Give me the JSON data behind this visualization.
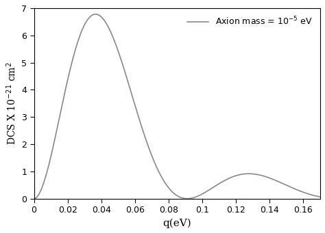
{
  "title": "",
  "xlabel": "q(eV)",
  "ylabel": "DCS X 10$^{-21}$ cm$^2$",
  "xlim": [
    0,
    0.17
  ],
  "ylim": [
    0,
    7
  ],
  "xticks": [
    0,
    0.02,
    0.04,
    0.06,
    0.08,
    0.1,
    0.12,
    0.14,
    0.16
  ],
  "yticks": [
    0,
    1,
    2,
    3,
    4,
    5,
    6,
    7
  ],
  "legend_label": "Axion mass = $10^{-5}$ eV",
  "line_color": "#888888",
  "line_width": 1.2,
  "amplitude": 6.78,
  "q_scale": 0.091,
  "decay": 22.0,
  "background_color": "#ffffff"
}
